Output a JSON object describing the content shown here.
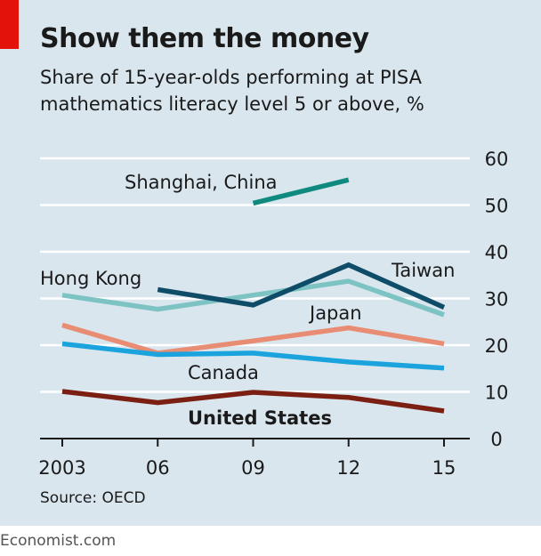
{
  "title": "Show them the money",
  "subtitle_lines": [
    "Share of 15-year-olds performing at PISA",
    "mathematics literacy level 5 or above, %"
  ],
  "source": "Source: OECD",
  "brand": "Economist.com",
  "colors": {
    "background": "#d9e6ee",
    "accent": "#e3120b",
    "Shanghai, China": "#0f8a7e",
    "Hong Kong": "#7ec3c3",
    "Taiwan": "#0f4c68",
    "Japan": "#e88c74",
    "Canada": "#1aa3dd",
    "United States": "#7a1f12"
  },
  "chart_data": {
    "type": "line",
    "x": [
      2003,
      2006,
      2009,
      2012,
      2015
    ],
    "x_tick_labels": [
      "2003",
      "06",
      "09",
      "12",
      "15"
    ],
    "y_tick_labels": [
      "0",
      "10",
      "20",
      "30",
      "40",
      "50",
      "60"
    ],
    "ylim": [
      0,
      60
    ],
    "grid": true,
    "y_axis_side": "right",
    "series": [
      {
        "name": "Shanghai, China",
        "label": "Shanghai, China",
        "bold": false,
        "values": [
          null,
          null,
          50.4,
          55.4,
          null
        ]
      },
      {
        "name": "Hong Kong",
        "label": "Hong Kong",
        "bold": false,
        "values": [
          30.7,
          27.7,
          30.7,
          33.7,
          26.5
        ]
      },
      {
        "name": "Taiwan",
        "label": "Taiwan",
        "bold": false,
        "values": [
          null,
          31.9,
          28.6,
          37.2,
          28.1
        ]
      },
      {
        "name": "Japan",
        "label": "Japan",
        "bold": false,
        "values": [
          24.3,
          18.3,
          20.9,
          23.7,
          20.3
        ]
      },
      {
        "name": "Canada",
        "label": "Canada",
        "bold": false,
        "values": [
          20.3,
          18.0,
          18.3,
          16.4,
          15.1
        ]
      },
      {
        "name": "United States",
        "label": "United States",
        "bold": true,
        "values": [
          10.1,
          7.7,
          9.9,
          8.8,
          5.9
        ]
      }
    ]
  }
}
